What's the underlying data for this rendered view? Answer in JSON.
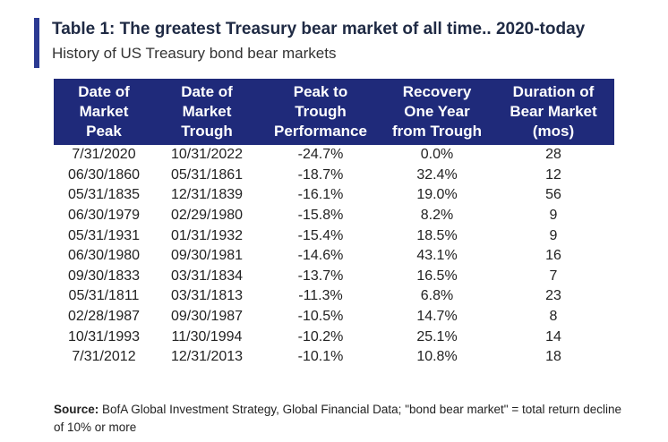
{
  "title": "Table 1: The greatest Treasury bear market of all time.. 2020-today",
  "subtitle": "History of US Treasury bond bear markets",
  "headers": [
    [
      "Date of",
      "Market",
      "Peak"
    ],
    [
      "Date of",
      "Market",
      "Trough"
    ],
    [
      "Peak to",
      "Trough",
      "Performance"
    ],
    [
      "Recovery",
      "One Year",
      "from Trough"
    ],
    [
      "Duration of",
      "Bear Market",
      "(mos)"
    ]
  ],
  "rows": [
    [
      "7/31/2020",
      "10/31/2022",
      "-24.7%",
      "0.0%",
      "28"
    ],
    [
      "06/30/1860",
      "05/31/1861",
      "-18.7%",
      "32.4%",
      "12"
    ],
    [
      "05/31/1835",
      "12/31/1839",
      "-16.1%",
      "19.0%",
      "56"
    ],
    [
      "06/30/1979",
      "02/29/1980",
      "-15.8%",
      "8.2%",
      "9"
    ],
    [
      "05/31/1931",
      "01/31/1932",
      "-15.4%",
      "18.5%",
      "9"
    ],
    [
      "06/30/1980",
      "09/30/1981",
      "-14.6%",
      "43.1%",
      "16"
    ],
    [
      "09/30/1833",
      "03/31/1834",
      "-13.7%",
      "16.5%",
      "7"
    ],
    [
      "05/31/1811",
      "03/31/1813",
      "-11.3%",
      "6.8%",
      "23"
    ],
    [
      "02/28/1987",
      "09/30/1987",
      "-10.5%",
      "14.7%",
      "8"
    ],
    [
      "10/31/1993",
      "11/30/1994",
      "-10.2%",
      "25.1%",
      "14"
    ],
    [
      "7/31/2012",
      "12/31/2013",
      "-10.1%",
      "10.8%",
      "18"
    ]
  ],
  "source": {
    "label": "Source:",
    "text": " BofA Global Investment Strategy, Global Financial Data; \"bond bear market\" = total return decline of 10% or more"
  },
  "colors": {
    "header_bg": "#1f2a7a",
    "negative": "#d6322c",
    "accent": "#2b3a92"
  }
}
